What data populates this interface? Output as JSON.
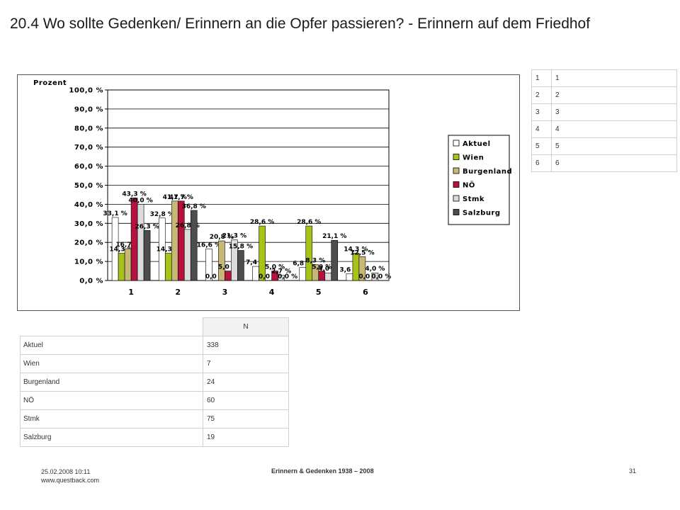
{
  "page": {
    "title": "20.4 Wo sollte Gedenken/ Erinnern an die Opfer passieren? - Erinnern auf dem Friedhof"
  },
  "chart_data": {
    "type": "bar",
    "ylabel": "Prozent",
    "ylim": [
      0,
      100
    ],
    "yticks": [
      "0,0 %",
      "10,0 %",
      "20,0 %",
      "30,0 %",
      "40,0 %",
      "50,0 %",
      "60,0 %",
      "70,0 %",
      "80,0 %",
      "90,0 %",
      "100,0 %"
    ],
    "grid": true,
    "legend_position": "right",
    "categories": [
      "1",
      "2",
      "3",
      "4",
      "5",
      "6"
    ],
    "series": [
      {
        "name": "Aktuel",
        "color": "#ffffff",
        "values": [
          33.1,
          32.8,
          16.6,
          7.4,
          6.8,
          3.6
        ],
        "labels": [
          "33,1 %",
          "32,8 %",
          "16,6 %",
          "7,4 %",
          "6,8 %",
          "3,6 %"
        ]
      },
      {
        "name": "Wien",
        "color": "#a5c31b",
        "values": [
          14.3,
          14.3,
          0.0,
          28.6,
          28.6,
          14.3
        ],
        "labels": [
          "14,3 %",
          "14,3 %",
          "0,0 %",
          "28,6 %",
          "28,6 %",
          "14,3 %"
        ]
      },
      {
        "name": "Burgenland",
        "color": "#c8b878",
        "values": [
          16.7,
          41.7,
          20.8,
          0.0,
          8.3,
          12.5
        ],
        "labels": [
          "16,7 %",
          "41,7 %",
          "20,8 %",
          "0,0 %",
          "8,3 %",
          "12,5 %"
        ]
      },
      {
        "name": "NÖ",
        "color": "#b5123e",
        "values": [
          43.3,
          41.7,
          5.0,
          5.0,
          5.0,
          0.0
        ],
        "labels": [
          "43,3 %",
          "41,7 %",
          "5,0 %",
          "5,0 %",
          "5,0 %",
          "0,0 %"
        ]
      },
      {
        "name": "Stmk",
        "color": "#dcdcdc",
        "values": [
          40.0,
          26.8,
          21.3,
          2.7,
          4.0,
          4.0
        ],
        "labels": [
          "40,0 %",
          "26,8 %",
          "21,3 %",
          "2,7 %",
          "4,0 %",
          "4,0 %"
        ]
      },
      {
        "name": "Salzburg",
        "color": "#4d4d4d",
        "values": [
          26.3,
          36.8,
          15.8,
          0.0,
          21.1,
          0.0
        ],
        "labels": [
          "26,3 %",
          "36,8 %",
          "15,8 %",
          "0,0 %",
          "21,1 %",
          "0,0 %"
        ]
      }
    ]
  },
  "key_table": {
    "rows": [
      [
        "1",
        "1"
      ],
      [
        "2",
        "2"
      ],
      [
        "3",
        "3"
      ],
      [
        "4",
        "4"
      ],
      [
        "5",
        "5"
      ],
      [
        "6",
        "6"
      ]
    ]
  },
  "n_table": {
    "header": "N",
    "rows": [
      {
        "label": "Aktuel",
        "value": "338"
      },
      {
        "label": "Wien",
        "value": "7"
      },
      {
        "label": "Burgenland",
        "value": "24"
      },
      {
        "label": "NÖ",
        "value": "60"
      },
      {
        "label": "Stmk",
        "value": "75"
      },
      {
        "label": "Salzburg",
        "value": "19"
      }
    ]
  },
  "footer": {
    "date": "25.02.2008 10:11",
    "url": "www.questback.com",
    "center": "Erinnern & Gedenken 1938 – 2008",
    "page_number": "31"
  }
}
